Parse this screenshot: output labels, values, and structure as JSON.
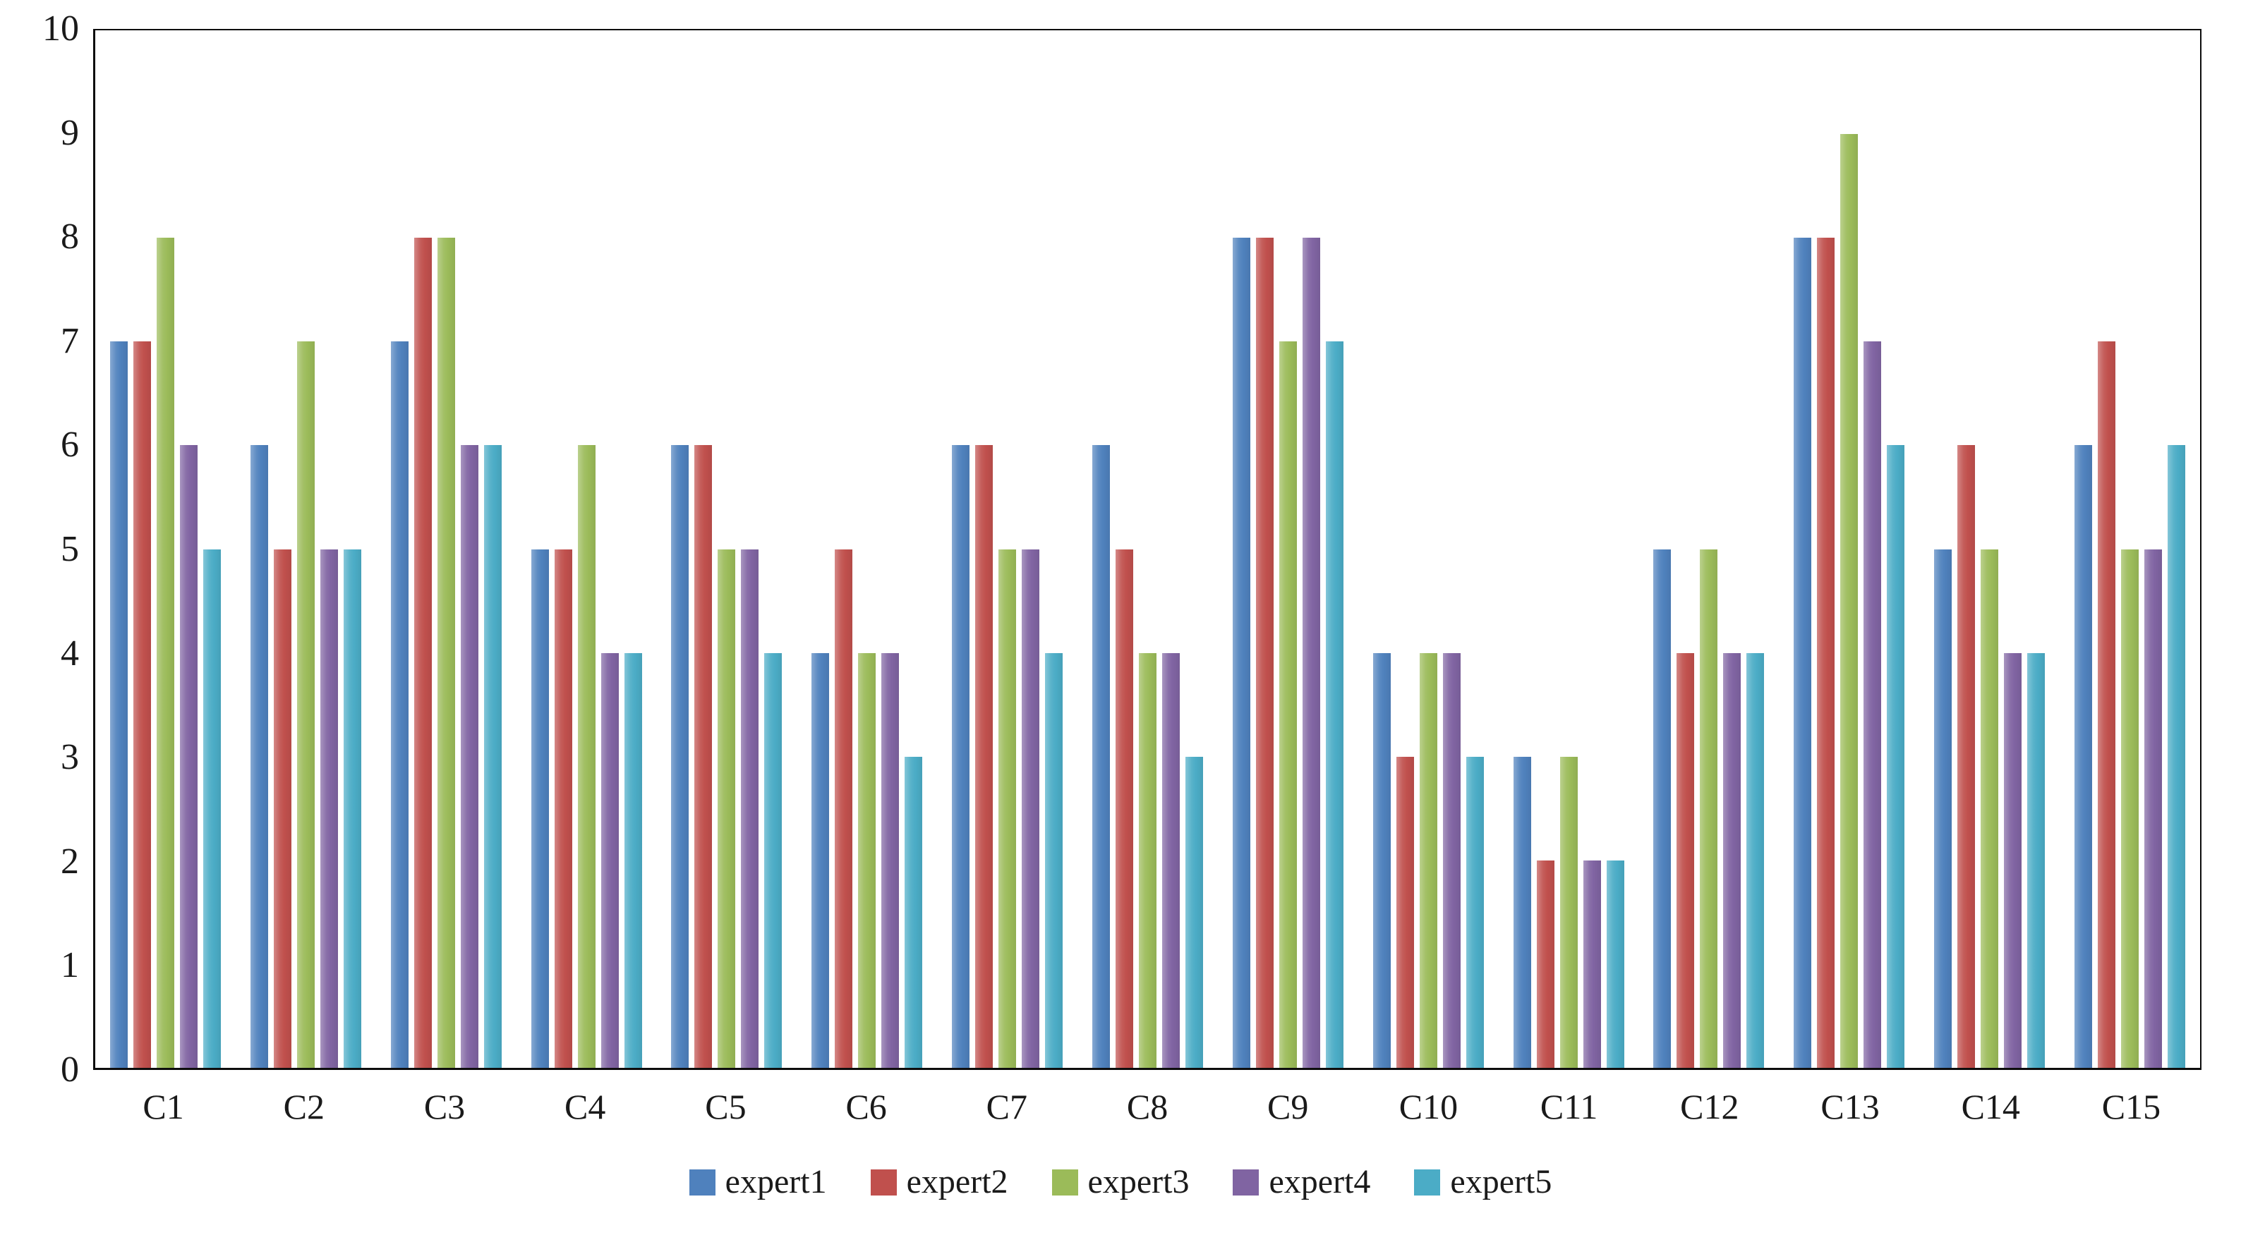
{
  "figure": {
    "background_color": "#ffffff",
    "axis_line_color": "#0d0d0d",
    "text_color": "#1a1a1a"
  },
  "chart_data": {
    "type": "bar",
    "title": "",
    "xlabel": "",
    "ylabel": "",
    "ylim": [
      0,
      10
    ],
    "y_tick_step": 1,
    "grid": false,
    "legend_position": "bottom",
    "categories": [
      "C1",
      "C2",
      "C3",
      "C4",
      "C5",
      "C6",
      "C7",
      "C8",
      "C9",
      "C10",
      "C11",
      "C12",
      "C13",
      "C14",
      "C15"
    ],
    "series": [
      {
        "name": "expert1",
        "color": "#4F81BD",
        "values": [
          7,
          6,
          7,
          5,
          6,
          4,
          6,
          6,
          8,
          4,
          3,
          5,
          8,
          5,
          6
        ]
      },
      {
        "name": "expert2",
        "color": "#C0504D",
        "values": [
          7,
          5,
          8,
          5,
          6,
          5,
          6,
          5,
          8,
          3,
          2,
          4,
          8,
          6,
          7
        ]
      },
      {
        "name": "expert3",
        "color": "#9BBB59",
        "values": [
          8,
          7,
          8,
          6,
          5,
          4,
          5,
          4,
          7,
          4,
          3,
          5,
          9,
          5,
          5
        ]
      },
      {
        "name": "expert4",
        "color": "#8064A2",
        "values": [
          6,
          5,
          6,
          4,
          5,
          4,
          5,
          4,
          8,
          4,
          2,
          4,
          7,
          4,
          5
        ]
      },
      {
        "name": "expert5",
        "color": "#4BACC6",
        "values": [
          5,
          5,
          6,
          4,
          4,
          3,
          4,
          3,
          7,
          3,
          2,
          4,
          6,
          4,
          6
        ]
      }
    ]
  }
}
